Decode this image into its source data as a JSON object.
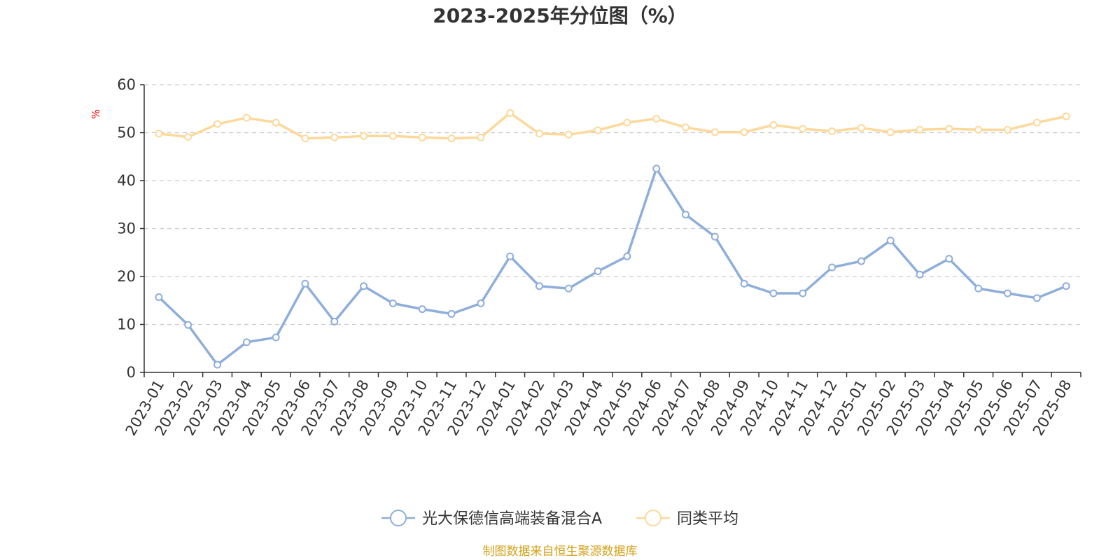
{
  "chart_data": {
    "type": "line",
    "title": "2023-2025年分位图（%）",
    "ylabel": "%",
    "xlabel": "",
    "ylim": [
      0,
      60
    ],
    "yticks": [
      0,
      10,
      20,
      30,
      40,
      50,
      60
    ],
    "grid": true,
    "legend_position": "bottom",
    "categories": [
      "2023-01",
      "2023-02",
      "2023-03",
      "2023-04",
      "2023-05",
      "2023-06",
      "2023-07",
      "2023-08",
      "2023-09",
      "2023-10",
      "2023-11",
      "2023-12",
      "2024-01",
      "2024-02",
      "2024-03",
      "2024-04",
      "2024-05",
      "2024-06",
      "2024-07",
      "2024-08",
      "2024-09",
      "2024-10",
      "2024-11",
      "2024-12",
      "2025-01",
      "2025-02",
      "2025-03",
      "2025-04",
      "2025-05",
      "2025-06",
      "2025-07",
      "2025-08"
    ],
    "series": [
      {
        "name": "光大保德信高端装备混合A",
        "color": "#8eaedb",
        "values": [
          15.7,
          9.9,
          1.6,
          6.3,
          7.3,
          18.5,
          10.6,
          18.0,
          14.4,
          13.2,
          12.2,
          14.4,
          24.2,
          18.0,
          17.5,
          21.1,
          24.2,
          42.5,
          32.9,
          28.3,
          18.5,
          16.5,
          16.5,
          21.9,
          23.2,
          27.5,
          20.4,
          23.7,
          17.5,
          16.5,
          15.5,
          18.0
        ]
      },
      {
        "name": "同类平均",
        "color": "#fcd99a",
        "values": [
          49.8,
          49.1,
          51.8,
          53.1,
          52.1,
          48.8,
          49.0,
          49.3,
          49.3,
          49.0,
          48.8,
          49.0,
          54.1,
          49.8,
          49.6,
          50.5,
          52.1,
          52.9,
          51.1,
          50.1,
          50.1,
          51.6,
          50.8,
          50.3,
          51.0,
          50.1,
          50.6,
          50.8,
          50.6,
          50.6,
          52.1,
          53.4
        ]
      }
    ]
  },
  "source": {
    "text": "制图数据来自恒生聚源数据库",
    "color": "#d4a017"
  },
  "unit_color": "#ff0000"
}
